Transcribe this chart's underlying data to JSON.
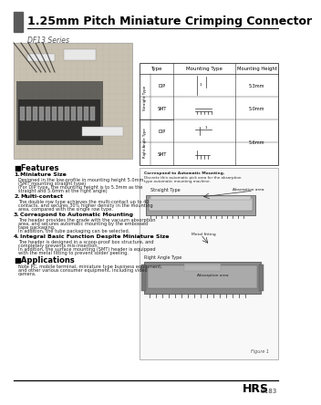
{
  "title": "1.25mm Pitch Miniature Crimping Connector",
  "subtitle": "DF13 Series",
  "bg_color": "#ffffff",
  "header_bar_color": "#5a5a5a",
  "title_color": "#000000",
  "features_heading": "■Features",
  "features": [
    {
      "num": "1.",
      "head": "Miniature Size",
      "body": "Designed in the low-profile in mounting height 5.0mm.\n(SMT mounting straight type)\n(For DIP type, the mounting height is to 5.3mm as the\nstraight and 5.6mm at the right angle)"
    },
    {
      "num": "2.",
      "head": "Multi-contact",
      "body": "The double row type achieves the multi-contact up to 40\ncontacts, and secures 30% higher density in the mounting\narea, compared with the single row type."
    },
    {
      "num": "3.",
      "head": "Correspond to Automatic Mounting",
      "body": "The header provides the grade with the vacuum absorption\narea, and secures automatic mounting by the embossed\ntape packaging.\nIn addition, the tube packaging can be selected."
    },
    {
      "num": "4.",
      "head": "Integral Basic Function Despite Miniature Size",
      "body": "The header is designed in a scoop-proof box structure, and\ncompletely prevents mis-insertion.\nIn addition, the surface mounting (SMT) header is equipped\nwith the metal fitting to prevent solder peeling."
    }
  ],
  "applications_heading": "■Applications",
  "applications_body": "Note PC, mobile terminal, miniature type business equipment,\nand other various consumer equipment, including video\ncamera.",
  "footer_brand": "HRS",
  "footer_model": "B183",
  "photo_bg": "#c8c0b0",
  "photo_border": "#999999",
  "table_border": "#333333",
  "fig_bg": "#f0f0f0",
  "fig_border": "#999999"
}
